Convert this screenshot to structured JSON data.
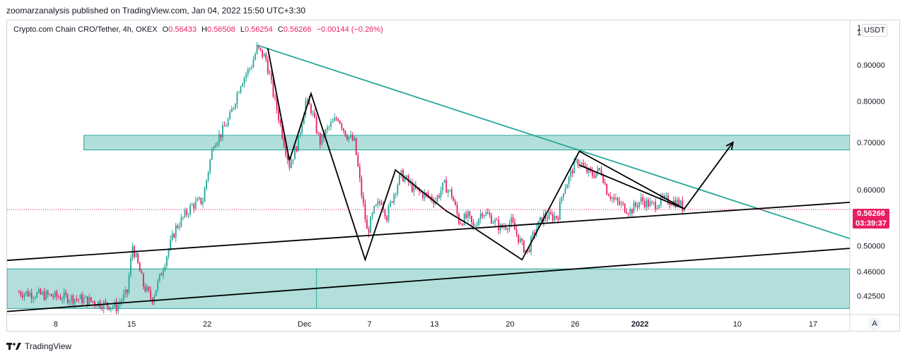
{
  "publisher_line": "zoomarzanalysis published on TradingView.com, Jan 04, 2022 15:50 UTC+3:30",
  "legend": {
    "symbol": "Crypto.com Chain CRO/Tether, 4h, OKEX",
    "o_label": "O",
    "o": "0.56433",
    "h_label": "H",
    "h": "0.56508",
    "l_label": "L",
    "l": "0.56254",
    "c_label": "C",
    "c": "0.56266",
    "change": "−0.00144 (−0.26%)"
  },
  "currency": "USDT",
  "currency_prefix": "1",
  "last_price": "0.56266",
  "countdown": "03:39:37",
  "auto_button": "A",
  "footer_brand": "TradingView",
  "colors": {
    "candle_up": "#26a69a",
    "candle_down": "#e91e63",
    "zone_fill": "#b2dfdb",
    "zone_stroke": "#26a69a",
    "trendline_teal": "#26a69a",
    "trendline_black": "#000000",
    "last_price": "#e91e63"
  },
  "chart_data": {
    "type": "candlestick",
    "symbol": "Crypto.com Chain CRO/Tether",
    "interval": "4h",
    "exchange": "OKEX",
    "y_scale": "log",
    "ylim": [
      0.4,
      1.04
    ],
    "y_ticks": [
      1.0,
      0.9,
      0.8,
      0.7,
      0.6,
      0.5,
      0.46,
      0.425
    ],
    "y_tick_labels": [
      "1.00000",
      "0.90000",
      "0.80000",
      "0.70000",
      "0.60000",
      "0.50000",
      "0.46000",
      "0.42500"
    ],
    "x_tick_labels": [
      "8",
      "15",
      "22",
      "Dec",
      "7",
      "13",
      "20",
      "26",
      "2022",
      "10",
      "17"
    ],
    "x_tick_pos": [
      0.4,
      7.4,
      14.4,
      23.4,
      29.4,
      35.4,
      42.4,
      48.4,
      54.4,
      63.4,
      70.4
    ],
    "xlim": [
      -4.1,
      73.8
    ],
    "price_path": [
      [
        -3.0,
        0.43
      ],
      [
        3.0,
        0.42
      ],
      [
        6.0,
        0.41
      ],
      [
        7.0,
        0.43
      ],
      [
        7.5,
        0.5
      ],
      [
        8.5,
        0.44
      ],
      [
        9.3,
        0.42
      ],
      [
        10.0,
        0.45
      ],
      [
        11.5,
        0.53
      ],
      [
        13.0,
        0.57
      ],
      [
        14.0,
        0.58
      ],
      [
        15.0,
        0.7
      ],
      [
        15.7,
        0.72
      ],
      [
        16.5,
        0.76
      ],
      [
        17.5,
        0.85
      ],
      [
        18.5,
        0.9
      ],
      [
        19.0,
        0.95
      ],
      [
        19.8,
        0.92
      ],
      [
        20.5,
        0.82
      ],
      [
        21.5,
        0.7
      ],
      [
        22.0,
        0.65
      ],
      [
        22.8,
        0.7
      ],
      [
        23.5,
        0.8
      ],
      [
        24.0,
        0.78
      ],
      [
        24.8,
        0.7
      ],
      [
        25.5,
        0.73
      ],
      [
        26.5,
        0.76
      ],
      [
        27.2,
        0.72
      ],
      [
        28.0,
        0.7
      ],
      [
        28.6,
        0.6
      ],
      [
        29.2,
        0.52
      ],
      [
        29.8,
        0.56
      ],
      [
        30.5,
        0.58
      ],
      [
        31.0,
        0.55
      ],
      [
        31.6,
        0.59
      ],
      [
        32.3,
        0.63
      ],
      [
        32.8,
        0.62
      ],
      [
        33.5,
        0.6
      ],
      [
        34.5,
        0.59
      ],
      [
        35.5,
        0.58
      ],
      [
        36.3,
        0.61
      ],
      [
        37.0,
        0.59
      ],
      [
        37.7,
        0.54
      ],
      [
        38.5,
        0.55
      ],
      [
        39.0,
        0.53
      ],
      [
        39.8,
        0.56
      ],
      [
        40.5,
        0.55
      ],
      [
        41.5,
        0.53
      ],
      [
        42.5,
        0.54
      ],
      [
        43.5,
        0.5
      ],
      [
        44.0,
        0.49
      ],
      [
        44.8,
        0.53
      ],
      [
        45.5,
        0.55
      ],
      [
        46.0,
        0.55
      ],
      [
        46.8,
        0.55
      ],
      [
        47.3,
        0.6
      ],
      [
        47.8,
        0.62
      ],
      [
        48.3,
        0.65
      ],
      [
        48.8,
        0.66
      ],
      [
        49.3,
        0.64
      ],
      [
        50.0,
        0.63
      ],
      [
        50.8,
        0.64
      ],
      [
        51.3,
        0.6
      ],
      [
        52.0,
        0.58
      ],
      [
        52.7,
        0.57
      ],
      [
        53.5,
        0.56
      ],
      [
        54.5,
        0.58
      ],
      [
        55.5,
        0.57
      ],
      [
        56.5,
        0.58
      ],
      [
        57.0,
        0.58
      ],
      [
        58.0,
        0.575
      ],
      [
        58.5,
        0.56266
      ]
    ],
    "zones": [
      {
        "x0": 3.0,
        "x1": 73.8,
        "y0": 0.683,
        "y1": 0.716
      },
      {
        "x0": -4.1,
        "x1": 73.8,
        "y0": 0.408,
        "y1": 0.464
      }
    ],
    "trendlines": [
      {
        "color": "#26a69a",
        "points": [
          [
            19.0,
            0.96
          ],
          [
            73.8,
            0.512
          ]
        ]
      },
      {
        "color": "#000000",
        "points": [
          [
            -4.1,
            0.477
          ],
          [
            73.8,
            0.576
          ]
        ]
      },
      {
        "color": "#000000",
        "points": [
          [
            -4.1,
            0.404
          ],
          [
            73.8,
            0.496
          ]
        ]
      },
      {
        "color": "#000000",
        "points": [
          [
            48.8,
            0.65
          ],
          [
            58.5,
            0.564
          ]
        ]
      }
    ],
    "pattern_path": [
      [
        20.0,
        0.95
      ],
      [
        22.0,
        0.66
      ],
      [
        24.0,
        0.82
      ],
      [
        29.0,
        0.478
      ],
      [
        31.8,
        0.64
      ],
      [
        36.5,
        0.56
      ],
      [
        38.5,
        0.537
      ],
      [
        43.5,
        0.478
      ],
      [
        48.8,
        0.68
      ],
      [
        58.5,
        0.564
      ],
      [
        63.0,
        0.7
      ]
    ],
    "last_price": 0.56266
  }
}
